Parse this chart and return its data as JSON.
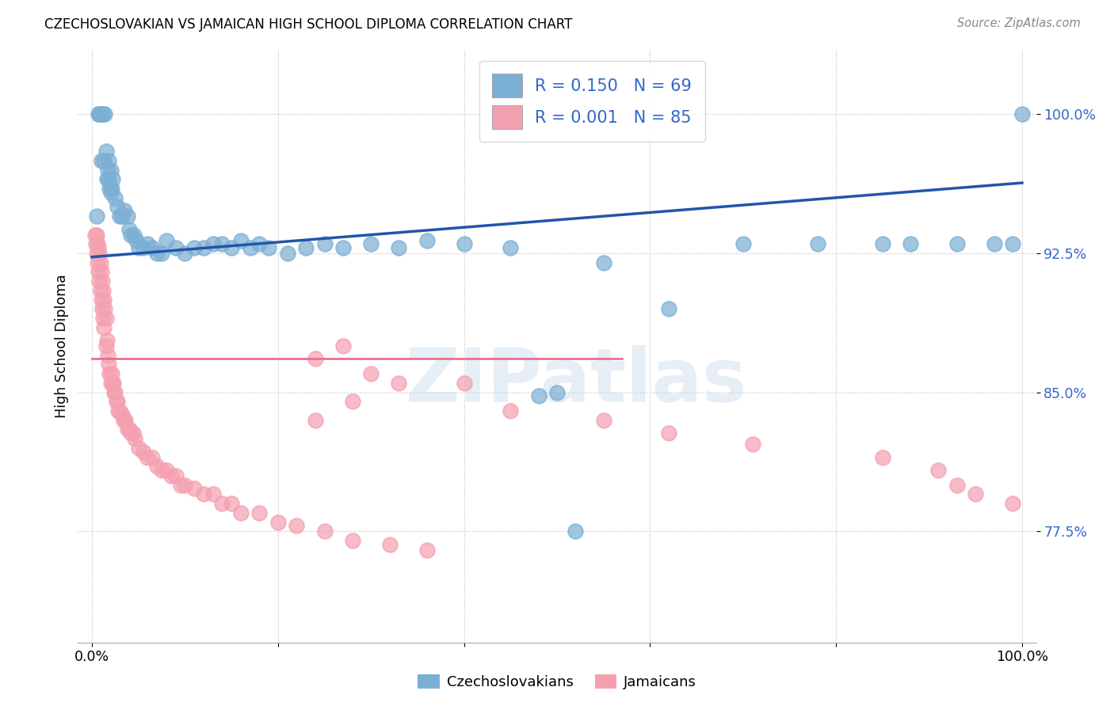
{
  "title": "CZECHOSLOVAKIAN VS JAMAICAN HIGH SCHOOL DIPLOMA CORRELATION CHART",
  "source": "Source: ZipAtlas.com",
  "ylabel": "High School Diploma",
  "xlim": [
    -0.015,
    1.015
  ],
  "ylim": [
    0.715,
    1.035
  ],
  "yticks": [
    0.775,
    0.85,
    0.925,
    1.0
  ],
  "ytick_labels": [
    "77.5%",
    "85.0%",
    "92.5%",
    "100.0%"
  ],
  "xtick_labels": [
    "0.0%",
    "100.0%"
  ],
  "xtick_vals": [
    0.0,
    1.0
  ],
  "blue_color": "#7BAFD4",
  "pink_color": "#F4A0B0",
  "blue_line_color": "#2255AA",
  "pink_line_color": "#E87090",
  "watermark": "ZIPatlas",
  "blue_line_x0": 0.0,
  "blue_line_y0": 0.923,
  "blue_line_x1": 1.0,
  "blue_line_y1": 0.963,
  "pink_line_x0": 0.0,
  "pink_line_y0": 0.868,
  "pink_line_x1": 0.57,
  "pink_line_y1": 0.868,
  "blue_x": [
    0.005,
    0.007,
    0.008,
    0.009,
    0.01,
    0.01,
    0.012,
    0.013,
    0.014,
    0.015,
    0.016,
    0.017,
    0.018,
    0.018,
    0.019,
    0.02,
    0.02,
    0.021,
    0.022,
    0.025,
    0.027,
    0.03,
    0.032,
    0.035,
    0.038,
    0.04,
    0.042,
    0.045,
    0.048,
    0.05,
    0.055,
    0.06,
    0.065,
    0.07,
    0.075,
    0.08,
    0.09,
    0.1,
    0.11,
    0.12,
    0.13,
    0.14,
    0.15,
    0.16,
    0.17,
    0.18,
    0.19,
    0.21,
    0.23,
    0.25,
    0.27,
    0.3,
    0.33,
    0.36,
    0.4,
    0.45,
    0.5,
    0.55,
    0.62,
    0.7,
    0.78,
    0.85,
    0.88,
    0.93,
    0.97,
    0.99,
    1.0,
    0.52,
    0.48
  ],
  "blue_y": [
    0.945,
    1.0,
    1.0,
    1.0,
    1.0,
    0.975,
    1.0,
    0.975,
    1.0,
    0.98,
    0.965,
    0.97,
    0.965,
    0.975,
    0.96,
    0.958,
    0.97,
    0.96,
    0.965,
    0.955,
    0.95,
    0.945,
    0.945,
    0.948,
    0.945,
    0.938,
    0.935,
    0.935,
    0.932,
    0.928,
    0.928,
    0.93,
    0.928,
    0.925,
    0.925,
    0.932,
    0.928,
    0.925,
    0.928,
    0.928,
    0.93,
    0.93,
    0.928,
    0.932,
    0.928,
    0.93,
    0.928,
    0.925,
    0.928,
    0.93,
    0.928,
    0.93,
    0.928,
    0.932,
    0.93,
    0.928,
    0.85,
    0.92,
    0.895,
    0.93,
    0.93,
    0.93,
    0.93,
    0.93,
    0.93,
    0.93,
    1.0,
    0.775,
    0.848
  ],
  "pink_x": [
    0.003,
    0.004,
    0.005,
    0.005,
    0.006,
    0.006,
    0.007,
    0.007,
    0.008,
    0.008,
    0.009,
    0.009,
    0.01,
    0.01,
    0.011,
    0.011,
    0.012,
    0.012,
    0.013,
    0.013,
    0.014,
    0.015,
    0.015,
    0.016,
    0.017,
    0.018,
    0.019,
    0.02,
    0.021,
    0.022,
    0.023,
    0.024,
    0.025,
    0.026,
    0.027,
    0.028,
    0.03,
    0.032,
    0.034,
    0.036,
    0.038,
    0.04,
    0.042,
    0.044,
    0.046,
    0.05,
    0.055,
    0.06,
    0.065,
    0.07,
    0.075,
    0.08,
    0.085,
    0.09,
    0.095,
    0.1,
    0.11,
    0.12,
    0.13,
    0.14,
    0.15,
    0.16,
    0.18,
    0.2,
    0.22,
    0.25,
    0.28,
    0.32,
    0.36,
    0.4,
    0.45,
    0.55,
    0.62,
    0.71,
    0.85,
    0.91,
    0.93,
    0.95,
    0.99,
    0.24,
    0.27,
    0.3,
    0.33,
    0.28,
    0.24
  ],
  "pink_y": [
    0.935,
    0.93,
    0.935,
    0.925,
    0.93,
    0.92,
    0.928,
    0.915,
    0.925,
    0.91,
    0.92,
    0.905,
    0.915,
    0.9,
    0.91,
    0.895,
    0.905,
    0.89,
    0.9,
    0.885,
    0.895,
    0.89,
    0.875,
    0.878,
    0.87,
    0.865,
    0.86,
    0.855,
    0.86,
    0.855,
    0.855,
    0.85,
    0.85,
    0.845,
    0.845,
    0.84,
    0.84,
    0.838,
    0.835,
    0.835,
    0.83,
    0.83,
    0.828,
    0.828,
    0.825,
    0.82,
    0.818,
    0.815,
    0.815,
    0.81,
    0.808,
    0.808,
    0.805,
    0.805,
    0.8,
    0.8,
    0.798,
    0.795,
    0.795,
    0.79,
    0.79,
    0.785,
    0.785,
    0.78,
    0.778,
    0.775,
    0.77,
    0.768,
    0.765,
    0.855,
    0.84,
    0.835,
    0.828,
    0.822,
    0.815,
    0.808,
    0.8,
    0.795,
    0.79,
    0.868,
    0.875,
    0.86,
    0.855,
    0.845,
    0.835
  ]
}
